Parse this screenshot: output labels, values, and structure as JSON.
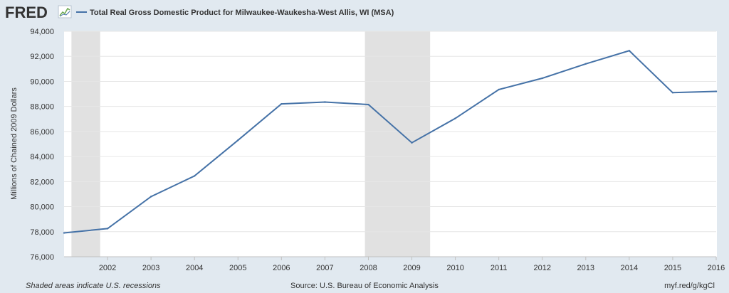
{
  "header": {
    "logo_text": "FRED",
    "logo_icon": "fred-sparkline-icon"
  },
  "footer": {
    "note": "Shaded areas indicate U.S. recessions",
    "source": "Source: U.S. Bureau of Economic Analysis",
    "link": "myf.red/g/kgCl"
  },
  "colors": {
    "background": "#e1e9f0",
    "plot_background": "#ffffff",
    "line": "#4572a7",
    "recession": "#e1e1e1",
    "grid": "#e6e6e6",
    "text": "#333333"
  },
  "chart_data": {
    "type": "line",
    "title": "",
    "xlabel": "",
    "ylabel": "Millions of Chained 2009 Dollars",
    "ylim": [
      76000,
      94000
    ],
    "xlim": [
      2001,
      2016
    ],
    "grid": true,
    "legend_position": "top-left",
    "y_ticks": [
      76000,
      78000,
      80000,
      82000,
      84000,
      86000,
      88000,
      90000,
      92000,
      94000
    ],
    "y_tick_labels": [
      "76,000",
      "78,000",
      "80,000",
      "82,000",
      "84,000",
      "86,000",
      "88,000",
      "90,000",
      "92,000",
      "94,000"
    ],
    "x_ticks": [
      2002,
      2003,
      2004,
      2005,
      2006,
      2007,
      2008,
      2009,
      2010,
      2011,
      2012,
      2013,
      2014,
      2015,
      2016
    ],
    "x_tick_labels": [
      "2002",
      "2003",
      "2004",
      "2005",
      "2006",
      "2007",
      "2008",
      "2009",
      "2010",
      "2011",
      "2012",
      "2013",
      "2014",
      "2015",
      "2016"
    ],
    "recessions": [
      [
        2001.17,
        2001.83
      ],
      [
        2007.92,
        2009.42
      ]
    ],
    "series": [
      {
        "name": "Total Real Gross Domestic Product for Milwaukee-Waukesha-West Allis, WI (MSA)",
        "x": [
          2001,
          2002,
          2003,
          2004,
          2005,
          2006,
          2007,
          2008,
          2009,
          2010,
          2011,
          2012,
          2013,
          2014,
          2015,
          2016
        ],
        "y": [
          77900,
          78250,
          80800,
          82450,
          85300,
          88200,
          88350,
          88150,
          85100,
          87050,
          89350,
          90250,
          91400,
          92450,
          89100,
          89200
        ]
      }
    ]
  }
}
